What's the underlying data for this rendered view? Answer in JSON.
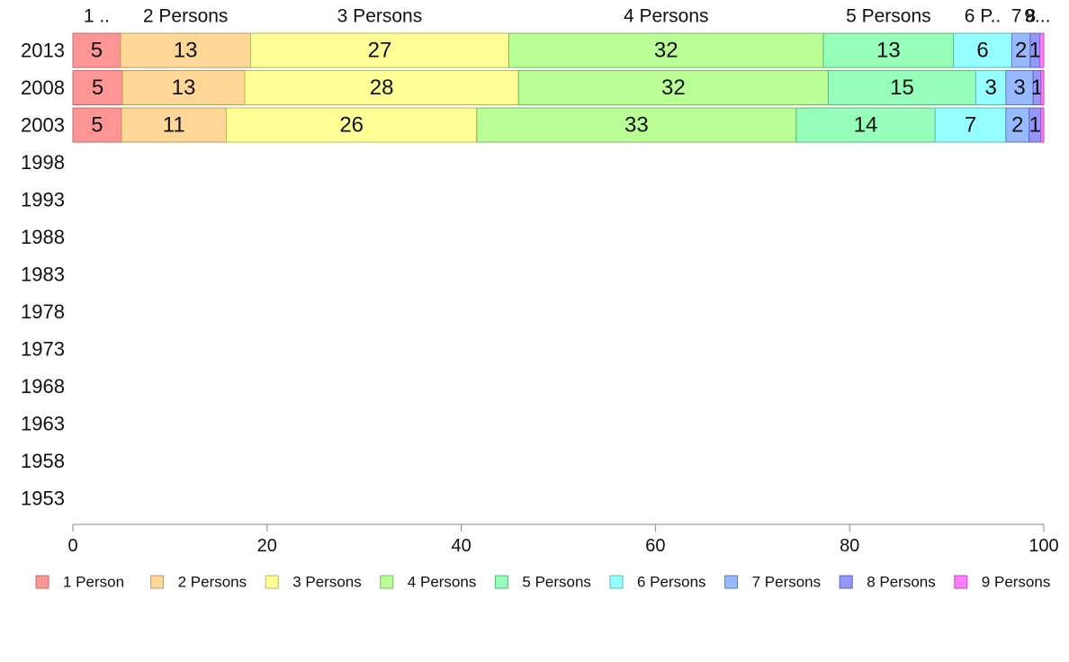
{
  "chart_data": {
    "type": "bar",
    "orientation": "horizontal",
    "stacked": true,
    "title": "",
    "xlabel": "",
    "ylabel": "",
    "xlim": [
      0,
      100
    ],
    "x_ticks": [
      "0",
      "20",
      "40",
      "60",
      "80",
      "100"
    ],
    "categories": [
      "2013",
      "2008",
      "2003",
      "1998",
      "1993",
      "1988",
      "1983",
      "1978",
      "1973",
      "1968",
      "1963",
      "1958",
      "1953"
    ],
    "top_labels": [
      "1 ..",
      "2 Persons",
      "3 Persons",
      "4 Persons",
      "5 Persons",
      "6 P..",
      "7",
      "8",
      "9..."
    ],
    "series": [
      {
        "name": "1 Person",
        "color": "#ff9696",
        "stroke": "#c06c6c",
        "values": [
          4.9,
          5.1,
          5.0,
          null,
          null,
          null,
          null,
          null,
          null,
          null,
          null,
          null,
          null
        ],
        "labels": [
          "5",
          "5",
          "5"
        ]
      },
      {
        "name": "2 Persons",
        "color": "#ffd796",
        "stroke": "#c09a5e",
        "values": [
          13.4,
          12.6,
          10.8,
          null,
          null,
          null,
          null,
          null,
          null,
          null,
          null,
          null,
          null
        ],
        "labels": [
          "13",
          "13",
          "11"
        ]
      },
      {
        "name": "3 Persons",
        "color": "#ffff96",
        "stroke": "#b8b860",
        "values": [
          26.6,
          28.2,
          25.8,
          null,
          null,
          null,
          null,
          null,
          null,
          null,
          null,
          null,
          null
        ],
        "labels": [
          "27",
          "28",
          "26"
        ]
      },
      {
        "name": "4 Persons",
        "color": "#b9ff96",
        "stroke": "#7cb860",
        "values": [
          32.4,
          31.9,
          32.9,
          null,
          null,
          null,
          null,
          null,
          null,
          null,
          null,
          null,
          null
        ],
        "labels": [
          "32",
          "32",
          "33"
        ]
      },
      {
        "name": "5 Persons",
        "color": "#96ffb9",
        "stroke": "#60b87c",
        "values": [
          13.4,
          15.2,
          14.3,
          null,
          null,
          null,
          null,
          null,
          null,
          null,
          null,
          null,
          null
        ],
        "labels": [
          "13",
          "15",
          "14"
        ]
      },
      {
        "name": "6 Persons",
        "color": "#96ffff",
        "stroke": "#60b8b8",
        "values": [
          6.0,
          3.1,
          7.3,
          null,
          null,
          null,
          null,
          null,
          null,
          null,
          null,
          null,
          null
        ],
        "labels": [
          "6",
          "3",
          "7"
        ]
      },
      {
        "name": "7 Persons",
        "color": "#96b9ff",
        "stroke": "#607cb8",
        "values": [
          1.9,
          2.8,
          2.4,
          null,
          null,
          null,
          null,
          null,
          null,
          null,
          null,
          null,
          null
        ],
        "labels": [
          "2",
          "3",
          "2"
        ]
      },
      {
        "name": "8 Persons",
        "color": "#9696ff",
        "stroke": "#6060b8",
        "values": [
          1.0,
          0.8,
          1.2,
          null,
          null,
          null,
          null,
          null,
          null,
          null,
          null,
          null,
          null
        ],
        "labels": [
          "1",
          "1",
          "1"
        ]
      },
      {
        "name": "9 Persons",
        "color": "#ff7cff",
        "stroke": "#b850b8",
        "values": [
          0.4,
          0.3,
          0.3,
          null,
          null,
          null,
          null,
          null,
          null,
          null,
          null,
          null,
          null
        ],
        "labels": [
          "",
          "",
          ""
        ]
      }
    ],
    "grid": false,
    "legend": "bottom"
  }
}
